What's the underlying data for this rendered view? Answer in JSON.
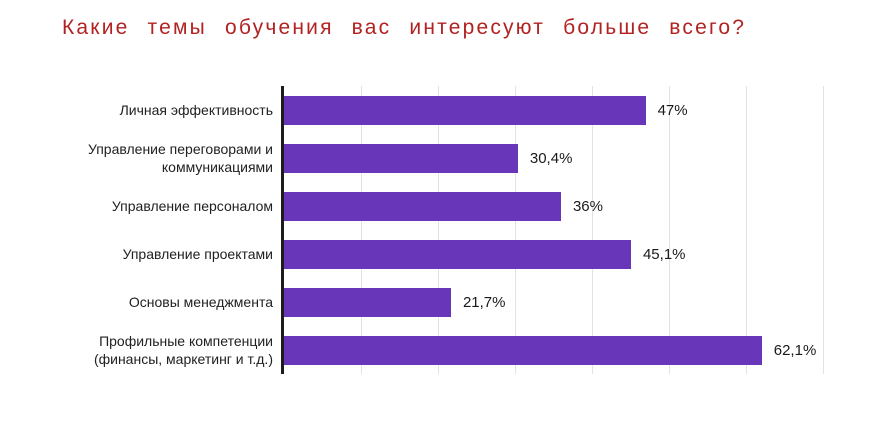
{
  "title": "Какие темы обучения вас интересуют больше всего?",
  "colors": {
    "bar": "#6836b9",
    "title": "#b22222",
    "axis": "#1c1c1c",
    "gridline": "#e3e3e3",
    "background": "#ffffff"
  },
  "chart_data": {
    "type": "bar",
    "orientation": "horizontal",
    "title": "Какие темы обучения вас интересуют больше всего?",
    "categories": [
      "Личная эффективность",
      "Управление переговорами и коммуникациями",
      "Управление персоналом",
      "Управление проектами",
      "Основы менеджмента",
      "Профильные компетенции (финансы, маркетинг и т.д.)"
    ],
    "label_lines": [
      [
        "Личная эффективность"
      ],
      [
        "Управление переговорами и",
        "коммуникациями"
      ],
      [
        "Управление персоналом"
      ],
      [
        "Управление проектами"
      ],
      [
        "Основы менеджмента"
      ],
      [
        "Профильные компетенции",
        "(финансы, маркетинг и т.д.)"
      ]
    ],
    "values": [
      47,
      30.4,
      36,
      45.1,
      21.7,
      62.1
    ],
    "value_labels": [
      "47%",
      "30,4%",
      "36%",
      "45,1%",
      "21,7%",
      "62,1%"
    ],
    "xlabel": "",
    "ylabel": "",
    "xlim": [
      0,
      75
    ],
    "grid": true,
    "grid_interval": 10,
    "legend": false,
    "bar_color": "#6836b9"
  }
}
